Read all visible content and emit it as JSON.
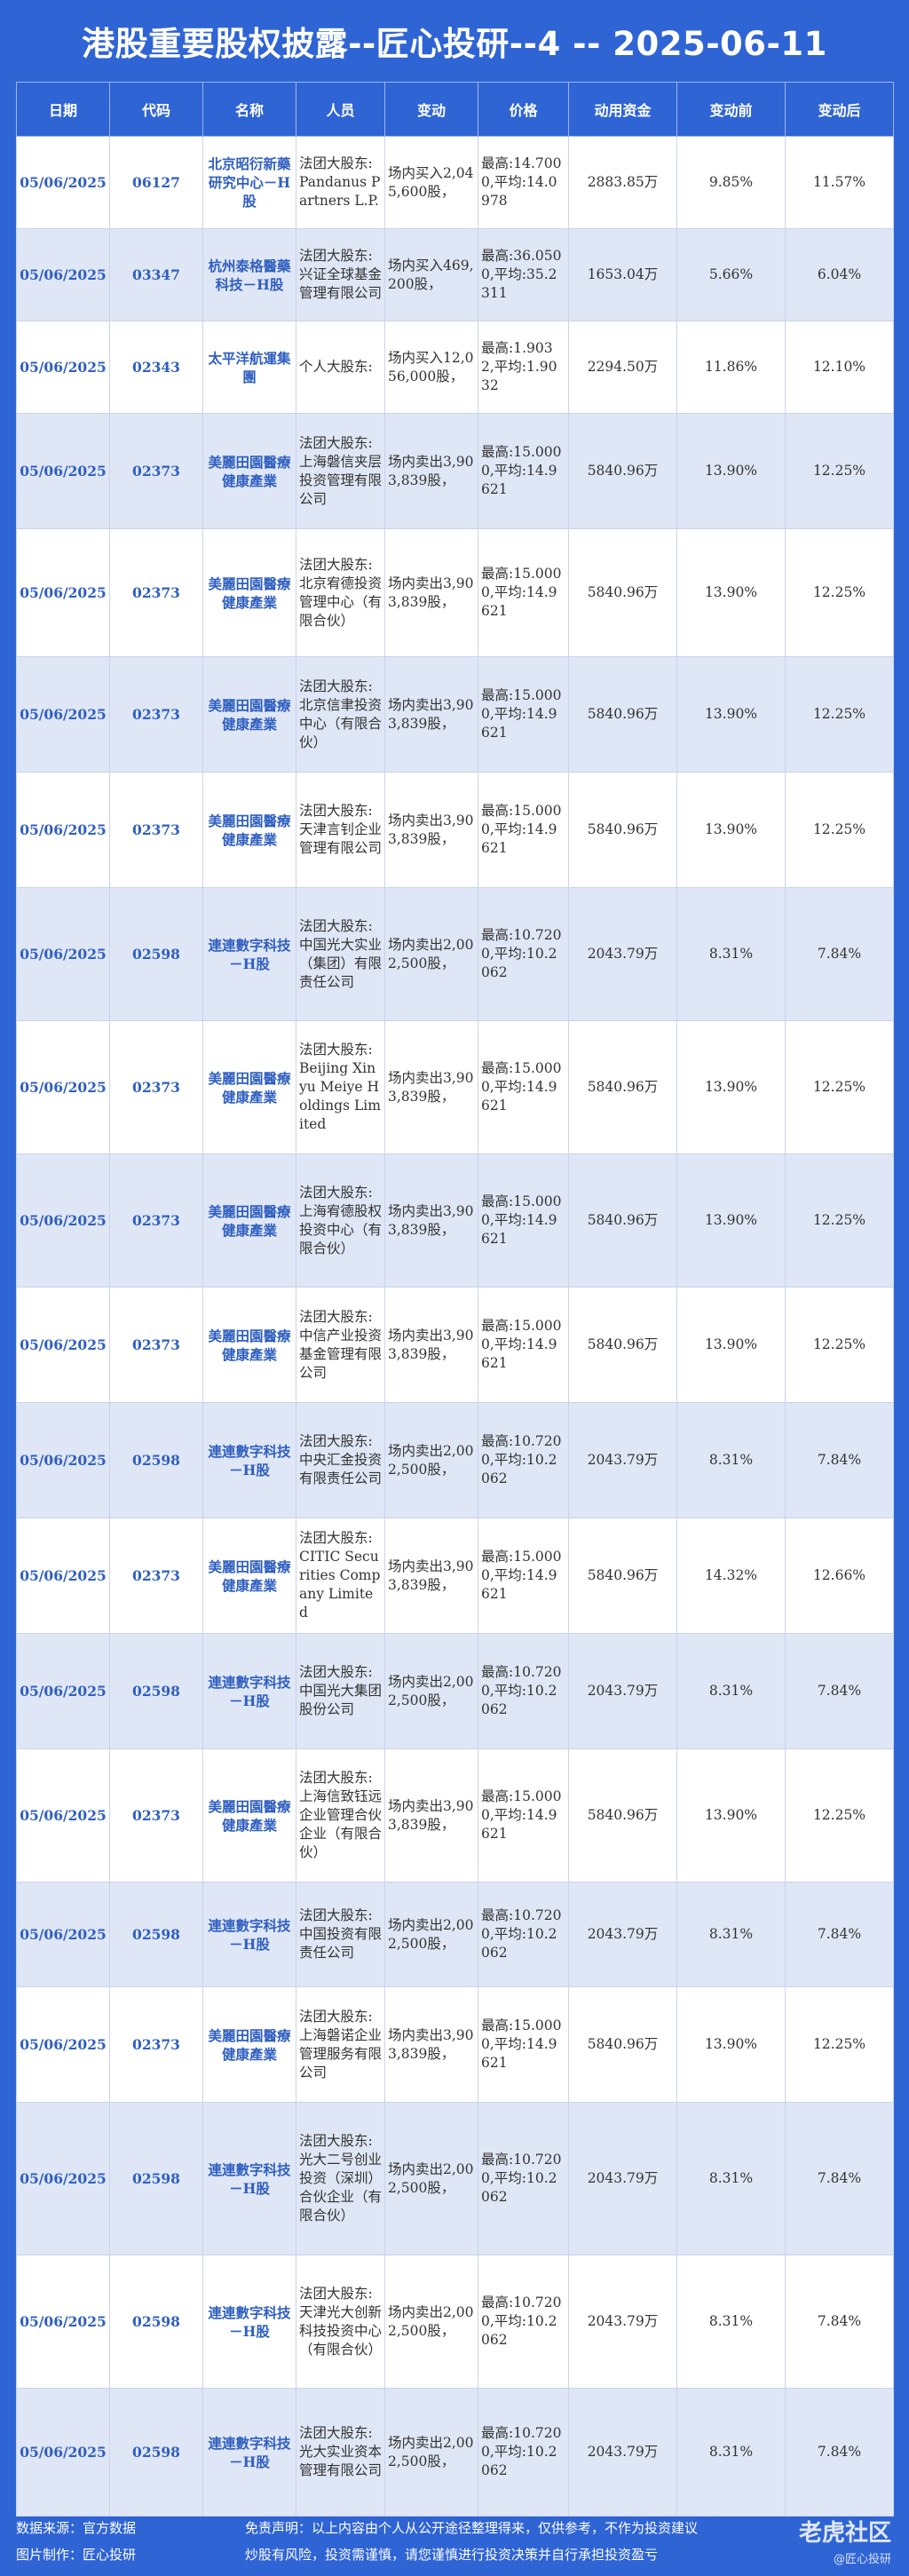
{
  "title": "港股重要股权披露--匠心投研--4 -- 2025-06-11",
  "headers": [
    "日期",
    "代码",
    "名称",
    "人员",
    "变动",
    "价格",
    "动用资金",
    "变动前",
    "变动后"
  ],
  "rows": [
    {
      "date": "05/06/2025",
      "code": "06127",
      "name": "北京昭衍新藥研究中心－H股",
      "person": "法团大股东:Pandanus Partners L.P.",
      "change": "场内买入2,045,600股，",
      "price": "最高:14.7000,平均:14.0978",
      "fund": "2883.85万",
      "before": "9.85%",
      "after": "11.57%"
    },
    {
      "date": "05/06/2025",
      "code": "03347",
      "name": "杭州泰格醫藥科技－H股",
      "person": "法团大股东:兴证全球基金管理有限公司",
      "change": "场内买入469,200股，",
      "price": "最高:36.0500,平均:35.2311",
      "fund": "1653.04万",
      "before": "5.66%",
      "after": "6.04%"
    },
    {
      "date": "05/06/2025",
      "code": "02343",
      "name": "太平洋航運集團",
      "person": "个人大股东:",
      "change": "场内买入12,056,000股，",
      "price": "最高:1.9032,平均:1.9032",
      "fund": "2294.50万",
      "before": "11.86%",
      "after": "12.10%"
    },
    {
      "date": "05/06/2025",
      "code": "02373",
      "name": "美麗田園醫療健康產業",
      "person": "法团大股东:上海磐信夹层投资管理有限公司",
      "change": "场内卖出3,903,839股，",
      "price": "最高:15.0000,平均:14.9621",
      "fund": "5840.96万",
      "before": "13.90%",
      "after": "12.25%"
    },
    {
      "date": "05/06/2025",
      "code": "02373",
      "name": "美麗田園醫療健康產業",
      "person": "法团大股东:北京宥德投资管理中心（有限合伙）",
      "change": "场内卖出3,903,839股，",
      "price": "最高:15.0000,平均:14.9621",
      "fund": "5840.96万",
      "before": "13.90%",
      "after": "12.25%"
    },
    {
      "date": "05/06/2025",
      "code": "02373",
      "name": "美麗田園醫療健康產業",
      "person": "法团大股东:北京信聿投资中心（有限合伙）",
      "change": "场内卖出3,903,839股，",
      "price": "最高:15.0000,平均:14.9621",
      "fund": "5840.96万",
      "before": "13.90%",
      "after": "12.25%"
    },
    {
      "date": "05/06/2025",
      "code": "02373",
      "name": "美麗田園醫療健康產業",
      "person": "法团大股东:天津言钊企业管理有限公司",
      "change": "场内卖出3,903,839股，",
      "price": "最高:15.0000,平均:14.9621",
      "fund": "5840.96万",
      "before": "13.90%",
      "after": "12.25%"
    },
    {
      "date": "05/06/2025",
      "code": "02598",
      "name": "連連數字科技－H股",
      "person": "法团大股东:中国光大实业（集团）有限责任公司",
      "change": "场内卖出2,002,500股，",
      "price": "最高:10.7200,平均:10.2062",
      "fund": "2043.79万",
      "before": "8.31%",
      "after": "7.84%"
    },
    {
      "date": "05/06/2025",
      "code": "02373",
      "name": "美麗田園醫療健康產業",
      "person": "法团大股东:Beijing Xinyu Meiye Holdings Limited",
      "change": "场内卖出3,903,839股，",
      "price": "最高:15.0000,平均:14.9621",
      "fund": "5840.96万",
      "before": "13.90%",
      "after": "12.25%"
    },
    {
      "date": "05/06/2025",
      "code": "02373",
      "name": "美麗田園醫療健康產業",
      "person": "法团大股东:上海宥德股权投资中心（有限合伙）",
      "change": "场内卖出3,903,839股，",
      "price": "最高:15.0000,平均:14.9621",
      "fund": "5840.96万",
      "before": "13.90%",
      "after": "12.25%"
    },
    {
      "date": "05/06/2025",
      "code": "02373",
      "name": "美麗田園醫療健康產業",
      "person": "法团大股东:中信产业投资基金管理有限公司",
      "change": "场内卖出3,903,839股，",
      "price": "最高:15.0000,平均:14.9621",
      "fund": "5840.96万",
      "before": "13.90%",
      "after": "12.25%"
    },
    {
      "date": "05/06/2025",
      "code": "02598",
      "name": "連連數字科技－H股",
      "person": "法团大股东:中央汇金投资有限责任公司",
      "change": "场内卖出2,002,500股，",
      "price": "最高:10.7200,平均:10.2062",
      "fund": "2043.79万",
      "before": "8.31%",
      "after": "7.84%"
    },
    {
      "date": "05/06/2025",
      "code": "02373",
      "name": "美麗田園醫療健康產業",
      "person": "法团大股东:CITIC Securities Company Limited",
      "change": "场内卖出3,903,839股，",
      "price": "最高:15.0000,平均:14.9621",
      "fund": "5840.96万",
      "before": "14.32%",
      "after": "12.66%"
    },
    {
      "date": "05/06/2025",
      "code": "02598",
      "name": "連連數字科技－H股",
      "person": "法团大股东:中国光大集团股份公司",
      "change": "场内卖出2,002,500股，",
      "price": "最高:10.7200,平均:10.2062",
      "fund": "2043.79万",
      "before": "8.31%",
      "after": "7.84%"
    },
    {
      "date": "05/06/2025",
      "code": "02373",
      "name": "美麗田園醫療健康產業",
      "person": "法团大股东:上海信致钰远企业管理合伙企业（有限合伙）",
      "change": "场内卖出3,903,839股，",
      "price": "最高:15.0000,平均:14.9621",
      "fund": "5840.96万",
      "before": "13.90%",
      "after": "12.25%"
    },
    {
      "date": "05/06/2025",
      "code": "02598",
      "name": "連連數字科技－H股",
      "person": "法团大股东:中国投资有限责任公司",
      "change": "场内卖出2,002,500股，",
      "price": "最高:10.7200,平均:10.2062",
      "fund": "2043.79万",
      "before": "8.31%",
      "after": "7.84%"
    },
    {
      "date": "05/06/2025",
      "code": "02373",
      "name": "美麗田園醫療健康產業",
      "person": "法团大股东:上海磐诺企业管理服务有限公司",
      "change": "场内卖出3,903,839股，",
      "price": "最高:15.0000,平均:14.9621",
      "fund": "5840.96万",
      "before": "13.90%",
      "after": "12.25%"
    },
    {
      "date": "05/06/2025",
      "code": "02598",
      "name": "連連數字科技－H股",
      "person": "法团大股东:光大二号创业投资（深圳）合伙企业（有限合伙）",
      "change": "场内卖出2,002,500股，",
      "price": "最高:10.7200,平均:10.2062",
      "fund": "2043.79万",
      "before": "8.31%",
      "after": "7.84%"
    },
    {
      "date": "05/06/2025",
      "code": "02598",
      "name": "連連數字科技－H股",
      "person": "法团大股东:天津光大创新科技投资中心（有限合伙）",
      "change": "场内卖出2,002,500股，",
      "price": "最高:10.7200,平均:10.2062",
      "fund": "2043.79万",
      "before": "8.31%",
      "after": "7.84%"
    },
    {
      "date": "05/06/2025",
      "code": "02598",
      "name": "連連數字科技－H股",
      "person": "法团大股东:光大实业资本管理有限公司",
      "change": "场内卖出2,002,500股，",
      "price": "最高:10.7200,平均:10.2062",
      "fund": "2043.79万",
      "before": "8.31%",
      "after": "7.84%"
    }
  ],
  "footer": {
    "source": "数据来源：官方数据",
    "maker": "图片制作：匠心投研",
    "disclaimer_line1": "免责声明：以上内容由个人从公开途径整理得来，仅供参考，不作为投资建议",
    "disclaimer_line2": "炒股有风险，投资需谨慎，请您谨慎进行投资决策并自行承担投资盈亏",
    "watermark": "老虎社区",
    "watermark_sub": "@匠心投研"
  }
}
